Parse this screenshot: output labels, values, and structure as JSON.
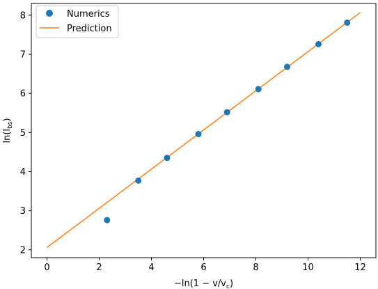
{
  "chart_data": {
    "type": "scatter",
    "title": "",
    "xlabel": "−ln(1 − v/v",
    "xlabel_sub": "c",
    "xlabel_end": ")",
    "ylabel": "ln(l",
    "ylabel_sub": "bs",
    "ylabel_end": ")",
    "xlim": [
      -0.6,
      12.6
    ],
    "ylim": [
      1.8,
      8.3
    ],
    "xticks": [
      0,
      2,
      4,
      6,
      8,
      10,
      12
    ],
    "xtick_labels": [
      "0",
      "2",
      "4",
      "6",
      "8",
      "10",
      "12"
    ],
    "yticks": [
      2,
      3,
      4,
      5,
      6,
      7,
      8
    ],
    "ytick_labels": [
      "2",
      "3",
      "4",
      "5",
      "6",
      "7",
      "8"
    ],
    "grid": false,
    "legend_position": "top-left",
    "series": [
      {
        "name": "Numerics",
        "kind": "markers",
        "color": "#1f77b4",
        "x": [
          2.3,
          3.5,
          4.6,
          5.8,
          6.9,
          8.1,
          9.2,
          10.4,
          11.5
        ],
        "y": [
          2.76,
          3.77,
          4.35,
          4.96,
          5.52,
          6.11,
          6.68,
          7.26,
          7.81
        ]
      },
      {
        "name": "Prediction",
        "kind": "line",
        "color": "#ff7f0e",
        "x": [
          0,
          12
        ],
        "y": [
          2.06,
          8.07
        ]
      }
    ]
  }
}
